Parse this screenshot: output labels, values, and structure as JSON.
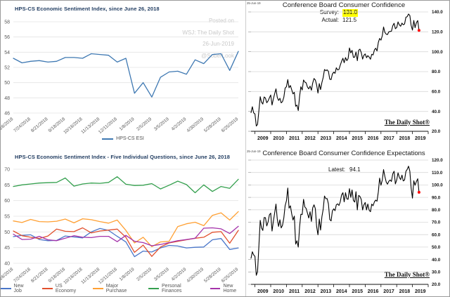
{
  "page": {
    "watermark_lines": [
      "Posted on",
      "WSJ: The Daily Shot",
      "26-Jun-2019",
      "@SoberLook"
    ]
  },
  "chart_data": [
    {
      "id": "esi",
      "type": "line",
      "title": "HPS-CS Economic Sentiment Index, since June 26, 2018",
      "grid": "horizontal",
      "legend_position": "bottom",
      "ylim": [
        46,
        58
      ],
      "yticks": [
        46,
        48,
        50,
        52,
        54,
        56,
        58
      ],
      "x_tick_labels": [
        "6/26/2018",
        "7/24/2018",
        "8/21/2018",
        "9/18/2018",
        "10/16/2018",
        "11/13/2018",
        "12/11/2018",
        "1/8/2019",
        "2/5/2019",
        "3/5/2019",
        "4/2/2019",
        "4/30/2019",
        "5/28/2019",
        "6/25/2019"
      ],
      "series": [
        {
          "name": "HPS-CS ESI",
          "color": "#3e78b2",
          "values": [
            53.2,
            52.6,
            52.8,
            52.9,
            52.7,
            52.8,
            53.3,
            53.3,
            53.2,
            53.8,
            53.7,
            53.6,
            52.7,
            53.2,
            48.6,
            50.0,
            48.1,
            50.7,
            51.4,
            51.5,
            51.1,
            53.0,
            52.5,
            53.7,
            53.8,
            51.6,
            54.1
          ]
        }
      ]
    },
    {
      "id": "esi5",
      "type": "line",
      "title": "HPS-CS Economic Sentiment Index - Five Individual Questions, since June 26, 2018",
      "grid": "horizontal",
      "legend_position": "bottom",
      "ylim": [
        40,
        70
      ],
      "yticks": [
        40,
        45,
        50,
        55,
        60,
        65,
        70
      ],
      "x_tick_labels": [
        "6/26/2018",
        "7/24/2018",
        "8/21/2018",
        "9/18/2018",
        "10/16/2018",
        "11/13/2018",
        "12/11/2018",
        "1/8/2019",
        "2/5/2019",
        "3/5/2019",
        "4/2/2019",
        "4/30/2019",
        "5/28/2019",
        "6/25/2019"
      ],
      "series": [
        {
          "name": "New Job",
          "color": "#4a76c9",
          "values": [
            48.5,
            48.9,
            49.1,
            47.6,
            47.2,
            47.3,
            48.7,
            48.4,
            48.1,
            50.0,
            51.1,
            50.5,
            48.6,
            46.8,
            42.1,
            43.9,
            43.6,
            44.9,
            45.7,
            45.5,
            44.9,
            45.1,
            45.2,
            47.5,
            47.9,
            44.4,
            44.9
          ]
        },
        {
          "name": "US Economy",
          "color": "#e2502d",
          "values": [
            50.3,
            48.8,
            48.3,
            47.9,
            48.7,
            50.9,
            50.2,
            50.1,
            51.3,
            49.7,
            50.3,
            50.6,
            50.9,
            48.3,
            43.5,
            45.8,
            42.2,
            45.2,
            46.5,
            47.0,
            47.5,
            48.0,
            48.3,
            49.9,
            50.1,
            46.4,
            50.5
          ]
        },
        {
          "name": "Major Purchase",
          "color": "#ffa033",
          "values": [
            53.5,
            53.0,
            54.0,
            53.3,
            53.2,
            53.4,
            54.1,
            52.9,
            54.2,
            53.9,
            53.3,
            52.8,
            53.8,
            50.5,
            46.5,
            48.3,
            45.3,
            46.8,
            47.0,
            51.7,
            52.6,
            53.1,
            52.0,
            55.3,
            56.1,
            53.8,
            56.5
          ]
        },
        {
          "name": "Personal Finances",
          "color": "#34a04e",
          "values": [
            64.5,
            65.0,
            65.3,
            65.6,
            65.7,
            65.8,
            67.2,
            64.6,
            65.3,
            65.6,
            65.5,
            65.8,
            67.6,
            65.2,
            64.8,
            64.9,
            65.4,
            63.7,
            64.9,
            66.2,
            65.1,
            62.5,
            65.0,
            62.9,
            64.5,
            63.9,
            66.8
          ]
        },
        {
          "name": "New Home",
          "color": "#a433aa",
          "values": [
            49.3,
            47.6,
            47.7,
            48.6,
            47.5,
            47.2,
            48.0,
            48.8,
            48.3,
            48.2,
            48.6,
            48.6,
            46.9,
            48.9,
            47.0,
            46.6,
            45.6,
            46.0,
            46.6,
            47.2,
            47.6,
            48.0,
            51.2,
            51.3,
            51.0,
            49.5,
            51.8
          ]
        }
      ]
    },
    {
      "id": "ccb",
      "type": "line",
      "title": "Conference Board Consumer Confidence",
      "stamp": "25-Jun-19",
      "watermark": "The Daily Shot®",
      "grid": "horizontal",
      "x_note": "monthly, Oct 2008 – Jun 2019",
      "annotations": {
        "survey_label": "Survey:",
        "survey_value": "131.0",
        "actual_label": "Actual:",
        "actual_value": "121.5"
      },
      "highlight_color": "#ffff00",
      "end_dot_color": "#ff0000",
      "ylim": [
        20,
        140
      ],
      "yticks": [
        20,
        40,
        60,
        80,
        100,
        120,
        140
      ],
      "ytick_labels": [
        "20.0",
        "40.0",
        "60.0",
        "80.0",
        "100.0",
        "120.0",
        "140.0"
      ],
      "x_tick_labels": [
        "2009",
        "2010",
        "2011",
        "2012",
        "2013",
        "2014",
        "2015",
        "2016",
        "2017",
        "2018",
        "2019"
      ],
      "series": [
        {
          "name": "Consumer Confidence",
          "color": "#000000",
          "values": [
            38.8,
            44.7,
            38.6,
            37.4,
            25.3,
            26.9,
            40.8,
            54.8,
            49.3,
            47.4,
            54.5,
            53.4,
            48.7,
            50.6,
            53.6,
            56.5,
            46.4,
            52.3,
            57.7,
            62.7,
            54.3,
            51.0,
            53.2,
            48.6,
            49.9,
            54.3,
            63.4,
            64.8,
            72.0,
            63.8,
            66.0,
            61.7,
            57.6,
            59.2,
            45.2,
            46.4,
            40.9,
            55.2,
            64.8,
            61.5,
            71.6,
            69.5,
            68.7,
            64.4,
            62.7,
            65.4,
            61.3,
            68.4,
            73.1,
            71.5,
            66.7,
            58.4,
            68.0,
            61.9,
            69.0,
            74.3,
            82.1,
            81.0,
            81.8,
            80.2,
            72.4,
            72.0,
            77.5,
            79.4,
            78.3,
            83.9,
            81.7,
            82.2,
            86.4,
            90.3,
            93.4,
            89.0,
            94.1,
            91.0,
            93.1,
            103.8,
            98.8,
            101.4,
            94.3,
            94.6,
            99.8,
            91.0,
            101.5,
            102.6,
            99.1,
            92.6,
            96.3,
            97.8,
            94.0,
            96.1,
            94.7,
            92.4,
            97.4,
            96.7,
            101.8,
            103.5,
            100.8,
            109.4,
            113.3,
            111.6,
            116.1,
            124.9,
            119.4,
            117.6,
            117.3,
            120.0,
            120.4,
            120.6,
            126.2,
            128.6,
            123.1,
            124.3,
            130.0,
            127.0,
            125.6,
            128.8,
            127.1,
            127.9,
            134.7,
            135.3,
            137.9,
            136.4,
            126.6,
            121.7,
            131.4,
            124.2,
            129.2,
            131.3,
            121.5
          ]
        }
      ]
    },
    {
      "id": "cce",
      "type": "line",
      "title": "Conference Board Consumer Confidence Expectations",
      "stamp": "25-Jun-19",
      "watermark": "The Daily Shot®",
      "grid": "horizontal",
      "x_note": "monthly, Oct 2008 – Jun 2019",
      "annotations": {
        "latest_label": "Latest:",
        "latest_value": "94.1"
      },
      "end_dot_color": "#ff0000",
      "ylim": [
        20,
        120
      ],
      "yticks": [
        20,
        30,
        40,
        50,
        60,
        70,
        80,
        90,
        100,
        110,
        120
      ],
      "ytick_labels": [
        "20.0",
        "30.0",
        "40.0",
        "50.0",
        "60.0",
        "70.0",
        "80.0",
        "90.0",
        "100.0",
        "110.0",
        "120.0"
      ],
      "x_tick_labels": [
        "2009",
        "2010",
        "2011",
        "2012",
        "2013",
        "2014",
        "2015",
        "2016",
        "2017",
        "2018",
        "2019"
      ],
      "series": [
        {
          "name": "Consumer Confidence Expectations",
          "color": "#000000",
          "values": [
            41.0,
            46.2,
            43.8,
            42.5,
            27.3,
            30.2,
            51.0,
            71.5,
            65.5,
            63.4,
            73.8,
            73.7,
            67.0,
            70.3,
            75.9,
            77.3,
            62.9,
            70.4,
            77.4,
            84.6,
            72.7,
            66.6,
            72.0,
            65.4,
            67.5,
            73.6,
            83.3,
            87.3,
            97.5,
            81.3,
            83.2,
            76.7,
            71.8,
            74.9,
            52.4,
            55.1,
            50.0,
            66.4,
            76.4,
            76.2,
            88.4,
            82.3,
            81.1,
            77.3,
            73.4,
            78.4,
            70.7,
            81.5,
            84.0,
            80.9,
            66.6,
            59.9,
            72.6,
            63.7,
            74.3,
            80.6,
            91.1,
            89.0,
            89.0,
            84.7,
            72.2,
            71.1,
            79.0,
            80.8,
            79.3,
            84.0,
            84.8,
            83.5,
            86.4,
            91.9,
            93.8,
            86.4,
            93.8,
            88.8,
            88.5,
            97.0,
            90.0,
            96.0,
            87.5,
            86.2,
            94.6,
            79.9,
            91.6,
            90.8,
            88.3,
            79.9,
            83.9,
            85.9,
            79.9,
            84.7,
            79.7,
            78.5,
            84.6,
            83.3,
            86.4,
            87.8,
            86.9,
            94.5,
            105.5,
            99.8,
            103.9,
            112.3,
            106.7,
            102.3,
            100.6,
            103.0,
            104.0,
            102.8,
            109.0,
            111.0,
            100.8,
            104.0,
            109.7,
            106.2,
            104.3,
            107.9,
            103.2,
            104.0,
            110.9,
            112.5,
            115.1,
            111.0,
            97.7,
            89.4,
            103.4,
            99.8,
            102.7,
            105.0,
            94.1
          ]
        }
      ]
    }
  ]
}
